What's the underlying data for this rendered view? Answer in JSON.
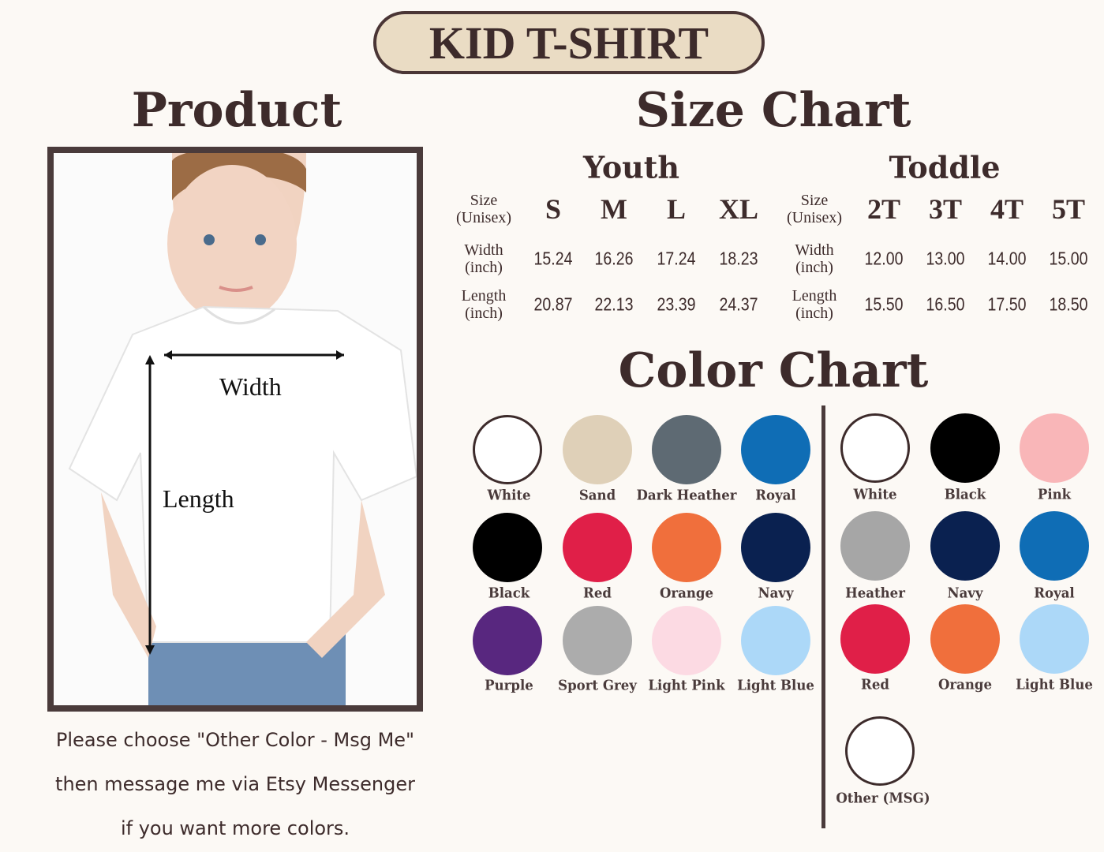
{
  "title": "KID T-SHIRT",
  "product": {
    "heading": "Product",
    "width_label": "Width",
    "length_label": "Length",
    "note": [
      "Please choose \"Other Color - Msg Me\"",
      "then message me via Etsy Messenger",
      "if you want more colors."
    ]
  },
  "size_chart": {
    "heading": "Size Chart",
    "groups": [
      {
        "name": "Youth",
        "row_labels": [
          "Size\n(Unisex)",
          "Width\n(inch)",
          "Length\n(inch)"
        ],
        "sizes": [
          "S",
          "M",
          "L",
          "XL"
        ],
        "width": [
          "15.24",
          "16.26",
          "17.24",
          "18.23"
        ],
        "length": [
          "20.87",
          "22.13",
          "23.39",
          "24.37"
        ]
      },
      {
        "name": "Toddle",
        "row_labels": [
          "Size\n(Unisex)",
          "Width\n(inch)",
          "Length\n(inch)"
        ],
        "sizes": [
          "2T",
          "3T",
          "4T",
          "5T"
        ],
        "width": [
          "12.00",
          "13.00",
          "14.00",
          "15.00"
        ],
        "length": [
          "15.50",
          "16.50",
          "17.50",
          "18.50"
        ]
      }
    ]
  },
  "color_chart": {
    "heading": "Color Chart",
    "youth": [
      {
        "name": "White",
        "color": "#ffffff"
      },
      {
        "name": "Sand",
        "color": "#dfd0b8"
      },
      {
        "name": "Dark Heather",
        "color": "#5e6a73"
      },
      {
        "name": "Royal",
        "color": "#0f6db5"
      },
      {
        "name": "Black",
        "color": "#000000"
      },
      {
        "name": "Red",
        "color": "#e01f48"
      },
      {
        "name": "Orange",
        "color": "#f06f3c"
      },
      {
        "name": "Navy",
        "color": "#0a2150"
      },
      {
        "name": "Purple",
        "color": "#58277f"
      },
      {
        "name": "Sport Grey",
        "color": "#acacac"
      },
      {
        "name": "Light Pink",
        "color": "#fcdae3"
      },
      {
        "name": "Light Blue",
        "color": "#acd8f8"
      }
    ],
    "toddler": [
      {
        "name": "White",
        "color": "#ffffff"
      },
      {
        "name": "Black",
        "color": "#000000"
      },
      {
        "name": "Pink",
        "color": "#f9b6b8"
      },
      {
        "name": "Heather",
        "color": "#a6a6a6"
      },
      {
        "name": "Navy",
        "color": "#0a2150"
      },
      {
        "name": "Royal",
        "color": "#0f6db5"
      },
      {
        "name": "Red",
        "color": "#e01f48"
      },
      {
        "name": "Orange",
        "color": "#f06f3c"
      },
      {
        "name": "Light Blue",
        "color": "#acd8f8"
      },
      {
        "name": "Other (MSG)",
        "color": "#ffffff"
      }
    ]
  }
}
